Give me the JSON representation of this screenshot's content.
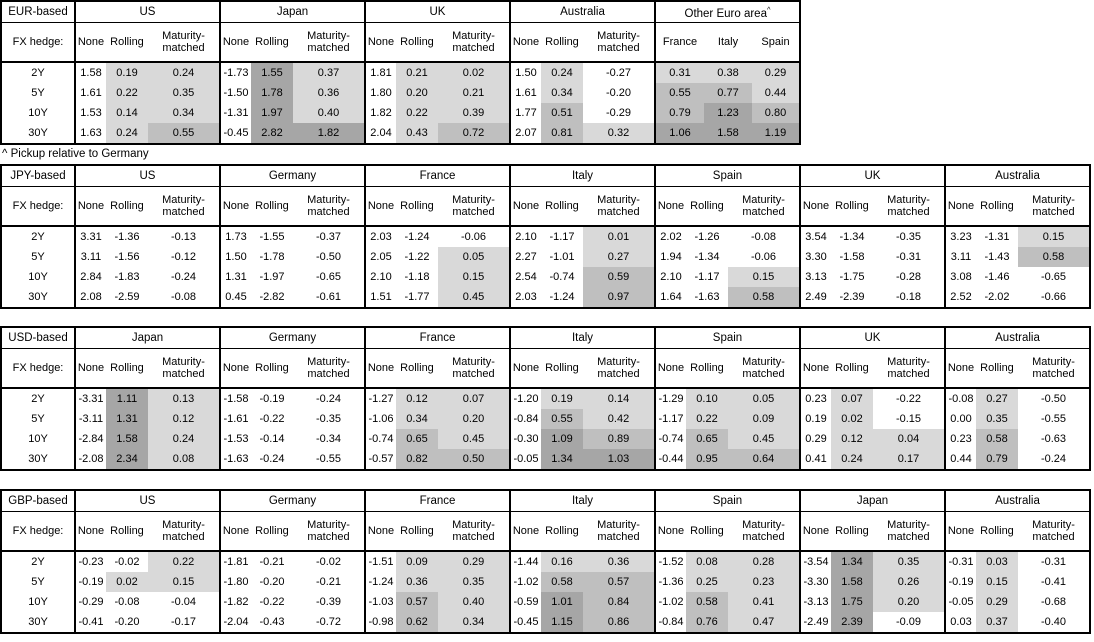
{
  "footnote": "^ Pickup relative to Germany",
  "shading": {
    "light": "#d9d9d9",
    "medium": "#bfbfbf",
    "dark": "#a6a6a6"
  },
  "tables": [
    {
      "id": "eur",
      "base_label": "EUR-based",
      "fx_hedge_label": "FX hedge:",
      "row_labels": [
        "2Y",
        "5Y",
        "10Y",
        "30Y"
      ],
      "groups": [
        {
          "name": "US",
          "columns": [
            "None",
            "Rolling",
            "Maturity-matched"
          ],
          "rows": [
            [
              "1.58",
              "0.19",
              "0.24"
            ],
            [
              "1.61",
              "0.22",
              "0.35"
            ],
            [
              "1.53",
              "0.14",
              "0.34"
            ],
            [
              "1.63",
              "0.24",
              "0.55"
            ]
          ]
        },
        {
          "name": "Japan",
          "columns": [
            "None",
            "Rolling",
            "Maturity-matched"
          ],
          "rows": [
            [
              "-1.73",
              "1.55",
              "0.37"
            ],
            [
              "-1.50",
              "1.78",
              "0.36"
            ],
            [
              "-1.31",
              "1.97",
              "0.40"
            ],
            [
              "-0.45",
              "2.82",
              "1.82"
            ]
          ]
        },
        {
          "name": "UK",
          "columns": [
            "None",
            "Rolling",
            "Maturity-matched"
          ],
          "rows": [
            [
              "1.81",
              "0.21",
              "0.02"
            ],
            [
              "1.80",
              "0.20",
              "0.21"
            ],
            [
              "1.82",
              "0.22",
              "0.39"
            ],
            [
              "2.04",
              "0.43",
              "0.72"
            ]
          ]
        },
        {
          "name": "Australia",
          "columns": [
            "None",
            "Rolling",
            "Maturity-matched"
          ],
          "rows": [
            [
              "1.50",
              "0.24",
              "-0.27"
            ],
            [
              "1.61",
              "0.34",
              "-0.20"
            ],
            [
              "1.77",
              "0.51",
              "-0.29"
            ],
            [
              "2.07",
              "0.81",
              "0.32"
            ]
          ]
        },
        {
          "name": "Other Euro area",
          "footnote_mark": "^",
          "columns": [
            "France",
            "Italy",
            "Spain"
          ],
          "rows": [
            [
              "0.31",
              "0.38",
              "0.29"
            ],
            [
              "0.55",
              "0.77",
              "0.44"
            ],
            [
              "0.79",
              "1.23",
              "0.80"
            ],
            [
              "1.06",
              "1.58",
              "1.19"
            ]
          ]
        }
      ]
    },
    {
      "id": "jpy",
      "base_label": "JPY-based",
      "fx_hedge_label": "FX hedge:",
      "row_labels": [
        "2Y",
        "5Y",
        "10Y",
        "30Y"
      ],
      "groups": [
        {
          "name": "US",
          "columns": [
            "None",
            "Rolling",
            "Maturity-matched"
          ],
          "rows": [
            [
              "3.31",
              "-1.36",
              "-0.13"
            ],
            [
              "3.11",
              "-1.56",
              "-0.12"
            ],
            [
              "2.84",
              "-1.83",
              "-0.24"
            ],
            [
              "2.08",
              "-2.59",
              "-0.08"
            ]
          ]
        },
        {
          "name": "Germany",
          "columns": [
            "None",
            "Rolling",
            "Maturity-matched"
          ],
          "rows": [
            [
              "1.73",
              "-1.55",
              "-0.37"
            ],
            [
              "1.50",
              "-1.78",
              "-0.50"
            ],
            [
              "1.31",
              "-1.97",
              "-0.65"
            ],
            [
              "0.45",
              "-2.82",
              "-0.61"
            ]
          ]
        },
        {
          "name": "France",
          "columns": [
            "None",
            "Rolling",
            "Maturity-matched"
          ],
          "rows": [
            [
              "2.03",
              "-1.24",
              "-0.06"
            ],
            [
              "2.05",
              "-1.22",
              "0.05"
            ],
            [
              "2.10",
              "-1.18",
              "0.15"
            ],
            [
              "1.51",
              "-1.77",
              "0.45"
            ]
          ]
        },
        {
          "name": "Italy",
          "columns": [
            "None",
            "Rolling",
            "Maturity-matched"
          ],
          "rows": [
            [
              "2.10",
              "-1.17",
              "0.01"
            ],
            [
              "2.27",
              "-1.01",
              "0.27"
            ],
            [
              "2.54",
              "-0.74",
              "0.59"
            ],
            [
              "2.03",
              "-1.24",
              "0.97"
            ]
          ]
        },
        {
          "name": "Spain",
          "columns": [
            "None",
            "Rolling",
            "Maturity-matched"
          ],
          "rows": [
            [
              "2.02",
              "-1.26",
              "-0.08"
            ],
            [
              "1.94",
              "-1.34",
              "-0.06"
            ],
            [
              "2.10",
              "-1.17",
              "0.15"
            ],
            [
              "1.64",
              "-1.63",
              "0.58"
            ]
          ]
        },
        {
          "name": "UK",
          "columns": [
            "None",
            "Rolling",
            "Maturity-matched"
          ],
          "rows": [
            [
              "3.54",
              "-1.34",
              "-0.35"
            ],
            [
              "3.30",
              "-1.58",
              "-0.31"
            ],
            [
              "3.13",
              "-1.75",
              "-0.28"
            ],
            [
              "2.49",
              "-2.39",
              "-0.18"
            ]
          ]
        },
        {
          "name": "Australia",
          "columns": [
            "None",
            "Rolling",
            "Maturity-matched"
          ],
          "rows": [
            [
              "3.23",
              "-1.31",
              "0.15"
            ],
            [
              "3.11",
              "-1.43",
              "0.58"
            ],
            [
              "3.08",
              "-1.46",
              "-0.65"
            ],
            [
              "2.52",
              "-2.02",
              "-0.66"
            ]
          ]
        }
      ]
    },
    {
      "id": "usd",
      "base_label": "USD-based",
      "fx_hedge_label": "FX hedge:",
      "row_labels": [
        "2Y",
        "5Y",
        "10Y",
        "30Y"
      ],
      "groups": [
        {
          "name": "Japan",
          "columns": [
            "None",
            "Rolling",
            "Maturity-matched"
          ],
          "rows": [
            [
              "-3.31",
              "1.11",
              "0.13"
            ],
            [
              "-3.11",
              "1.31",
              "0.12"
            ],
            [
              "-2.84",
              "1.58",
              "0.24"
            ],
            [
              "-2.08",
              "2.34",
              "0.08"
            ]
          ]
        },
        {
          "name": "Germany",
          "columns": [
            "None",
            "Rolling",
            "Maturity-matched"
          ],
          "rows": [
            [
              "-1.58",
              "-0.19",
              "-0.24"
            ],
            [
              "-1.61",
              "-0.22",
              "-0.35"
            ],
            [
              "-1.53",
              "-0.14",
              "-0.34"
            ],
            [
              "-1.63",
              "-0.24",
              "-0.55"
            ]
          ]
        },
        {
          "name": "France",
          "columns": [
            "None",
            "Rolling",
            "Maturity-matched"
          ],
          "rows": [
            [
              "-1.27",
              "0.12",
              "0.07"
            ],
            [
              "-1.06",
              "0.34",
              "0.20"
            ],
            [
              "-0.74",
              "0.65",
              "0.45"
            ],
            [
              "-0.57",
              "0.82",
              "0.50"
            ]
          ]
        },
        {
          "name": "Italy",
          "columns": [
            "None",
            "Rolling",
            "Maturity-matched"
          ],
          "rows": [
            [
              "-1.20",
              "0.19",
              "0.14"
            ],
            [
              "-0.84",
              "0.55",
              "0.42"
            ],
            [
              "-0.30",
              "1.09",
              "0.89"
            ],
            [
              "-0.05",
              "1.34",
              "1.03"
            ]
          ]
        },
        {
          "name": "Spain",
          "columns": [
            "None",
            "Rolling",
            "Maturity-matched"
          ],
          "rows": [
            [
              "-1.29",
              "0.10",
              "0.05"
            ],
            [
              "-1.17",
              "0.22",
              "0.09"
            ],
            [
              "-0.74",
              "0.65",
              "0.45"
            ],
            [
              "-0.44",
              "0.95",
              "0.64"
            ]
          ]
        },
        {
          "name": "UK",
          "columns": [
            "None",
            "Rolling",
            "Maturity-matched"
          ],
          "rows": [
            [
              "0.23",
              "0.07",
              "-0.22"
            ],
            [
              "0.19",
              "0.02",
              "-0.15"
            ],
            [
              "0.29",
              "0.12",
              "0.04"
            ],
            [
              "0.41",
              "0.24",
              "0.17"
            ]
          ]
        },
        {
          "name": "Australia",
          "columns": [
            "None",
            "Rolling",
            "Maturity-matched"
          ],
          "rows": [
            [
              "-0.08",
              "0.27",
              "-0.50"
            ],
            [
              "0.00",
              "0.35",
              "-0.55"
            ],
            [
              "0.23",
              "0.58",
              "-0.63"
            ],
            [
              "0.44",
              "0.79",
              "-0.24"
            ]
          ]
        }
      ]
    },
    {
      "id": "gbp",
      "base_label": "GBP-based",
      "fx_hedge_label": "FX hedge:",
      "row_labels": [
        "2Y",
        "5Y",
        "10Y",
        "30Y"
      ],
      "groups": [
        {
          "name": "US",
          "columns": [
            "None",
            "Rolling",
            "Maturity-matched"
          ],
          "rows": [
            [
              "-0.23",
              "-0.02",
              "0.22"
            ],
            [
              "-0.19",
              "0.02",
              "0.15"
            ],
            [
              "-0.29",
              "-0.08",
              "-0.04"
            ],
            [
              "-0.41",
              "-0.20",
              "-0.17"
            ]
          ]
        },
        {
          "name": "Germany",
          "columns": [
            "None",
            "Rolling",
            "Maturity-matched"
          ],
          "rows": [
            [
              "-1.81",
              "-0.21",
              "-0.02"
            ],
            [
              "-1.80",
              "-0.20",
              "-0.21"
            ],
            [
              "-1.82",
              "-0.22",
              "-0.39"
            ],
            [
              "-2.04",
              "-0.43",
              "-0.72"
            ]
          ]
        },
        {
          "name": "France",
          "columns": [
            "None",
            "Rolling",
            "Maturity-matched"
          ],
          "rows": [
            [
              "-1.51",
              "0.09",
              "0.29"
            ],
            [
              "-1.24",
              "0.36",
              "0.35"
            ],
            [
              "-1.03",
              "0.57",
              "0.40"
            ],
            [
              "-0.98",
              "0.62",
              "0.34"
            ]
          ]
        },
        {
          "name": "Italy",
          "columns": [
            "None",
            "Rolling",
            "Maturity-matched"
          ],
          "rows": [
            [
              "-1.44",
              "0.16",
              "0.36"
            ],
            [
              "-1.02",
              "0.58",
              "0.57"
            ],
            [
              "-0.59",
              "1.01",
              "0.84"
            ],
            [
              "-0.45",
              "1.15",
              "0.86"
            ]
          ]
        },
        {
          "name": "Spain",
          "columns": [
            "None",
            "Rolling",
            "Maturity-matched"
          ],
          "rows": [
            [
              "-1.52",
              "0.08",
              "0.28"
            ],
            [
              "-1.36",
              "0.25",
              "0.23"
            ],
            [
              "-1.02",
              "0.58",
              "0.41"
            ],
            [
              "-0.84",
              "0.76",
              "0.47"
            ]
          ]
        },
        {
          "name": "Japan",
          "columns": [
            "None",
            "Rolling",
            "Maturity-matched"
          ],
          "rows": [
            [
              "-3.54",
              "1.34",
              "0.35"
            ],
            [
              "-3.30",
              "1.58",
              "0.26"
            ],
            [
              "-3.13",
              "1.75",
              "0.20"
            ],
            [
              "-2.49",
              "2.39",
              "-0.09"
            ]
          ]
        },
        {
          "name": "Australia",
          "columns": [
            "None",
            "Rolling",
            "Maturity-matched"
          ],
          "rows": [
            [
              "-0.31",
              "0.03",
              "-0.31"
            ],
            [
              "-0.19",
              "0.15",
              "-0.41"
            ],
            [
              "-0.05",
              "0.29",
              "-0.68"
            ],
            [
              "0.03",
              "0.37",
              "-0.40"
            ]
          ]
        }
      ]
    }
  ]
}
